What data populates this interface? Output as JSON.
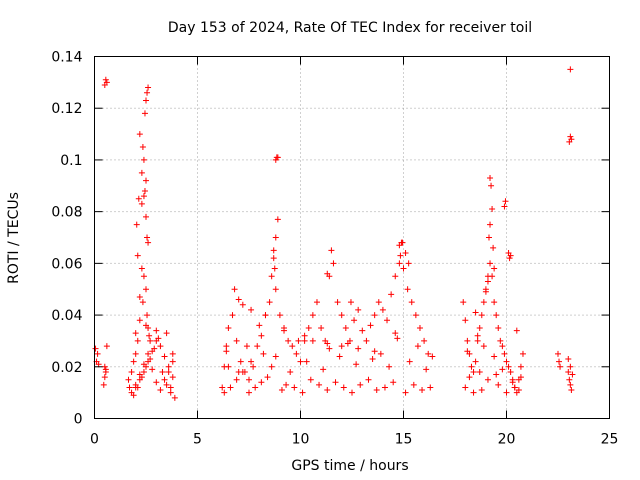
{
  "chart_data": {
    "type": "scatter",
    "title": "Day 153 of 2024, Rate Of TEC Index for receiver toil",
    "xlabel": "GPS time / hours",
    "ylabel": "ROTI / TECUs",
    "xlim": [
      0,
      25
    ],
    "ylim": [
      0,
      0.14
    ],
    "x_ticks": [
      0,
      5,
      10,
      15,
      20,
      25
    ],
    "x_tick_labels": [
      "0",
      "5",
      "10",
      "15",
      "20",
      "25"
    ],
    "y_ticks": [
      0,
      0.02,
      0.04,
      0.06,
      0.08,
      0.1,
      0.12,
      0.14
    ],
    "y_tick_labels": [
      "0",
      "0.02",
      "0.04",
      "0.06",
      "0.08",
      "0.1",
      "0.12",
      "0.14"
    ],
    "grid": true,
    "marker": "+",
    "marker_color": "#ff0000",
    "series": [
      {
        "name": "ROTI",
        "x": [
          0.05,
          0.1,
          0.15,
          0.2,
          0.45,
          0.5,
          0.55,
          0.5,
          0.55,
          0.6,
          0.5,
          0.55,
          0.6,
          1.65,
          1.7,
          1.8,
          1.9,
          2.0,
          2.1,
          2.2,
          2.05,
          2.15,
          2.3,
          2.4,
          2.45,
          2.5,
          2.55,
          2.6,
          2.2,
          2.35,
          2.45,
          2.5,
          2.55,
          2.6,
          2.1,
          2.3,
          2.4,
          2.5,
          2.2,
          2.35,
          2.55,
          2.6,
          2.65,
          2.7,
          2.3,
          2.4,
          2.5,
          2.0,
          2.2,
          2.4,
          2.6,
          2.8,
          3.0,
          3.2,
          3.4,
          3.6,
          3.8,
          1.8,
          2.0,
          2.2,
          2.4,
          2.6,
          2.8,
          3.0,
          3.2,
          3.4,
          3.6,
          3.8,
          1.9,
          2.1,
          2.3,
          2.5,
          2.7,
          2.9,
          3.1,
          3.3,
          3.5,
          3.7,
          3.9,
          2.0,
          2.5,
          3.0,
          3.5,
          3.7,
          3.8,
          6.2,
          6.3,
          6.4,
          6.5,
          6.7,
          6.9,
          7.1,
          7.3,
          7.5,
          7.7,
          7.9,
          8.1,
          8.3,
          8.5,
          8.6,
          8.7,
          8.8,
          8.9,
          8.8,
          8.85,
          8.9,
          8.7,
          8.75,
          8.8,
          9.0,
          9.2,
          9.4,
          9.6,
          9.8,
          10.0,
          10.2,
          10.4,
          10.6,
          10.8,
          11.0,
          11.2,
          11.4,
          11.5,
          11.6,
          11.8,
          12.0,
          12.2,
          12.4,
          12.6,
          12.8,
          13.0,
          13.2,
          13.4,
          13.6,
          13.8,
          14.0,
          14.2,
          14.4,
          14.6,
          14.8,
          14.9,
          14.85,
          15.0,
          15.2,
          15.4,
          15.6,
          15.8,
          16.0,
          16.2,
          6.3,
          6.6,
          6.9,
          7.2,
          7.5,
          7.8,
          8.1,
          8.4,
          9.1,
          9.3,
          9.7,
          10.1,
          10.5,
          10.9,
          11.3,
          11.7,
          12.1,
          12.5,
          12.9,
          13.3,
          13.7,
          14.1,
          14.5,
          15.1,
          15.5,
          15.9,
          16.3,
          6.5,
          7.0,
          7.6,
          8.2,
          8.6,
          9.5,
          10.3,
          11.1,
          11.9,
          12.7,
          13.5,
          14.3,
          15.3,
          16.1,
          6.4,
          7.4,
          8.8,
          9.9,
          11.4,
          12.3,
          13.9,
          14.7,
          15.7,
          16.4,
          14.8,
          14.95,
          15.1,
          15.25,
          11.3,
          12.45,
          8.0,
          6.8,
          7.0,
          7.2,
          7.6,
          8.3,
          9.2,
          10.2,
          10.6,
          11.3,
          12.0,
          12.8,
          13.6,
          14.6,
          17.9,
          18.0,
          18.1,
          18.2,
          18.3,
          18.4,
          18.5,
          18.6,
          18.7,
          18.8,
          18.9,
          19.0,
          19.1,
          19.2,
          19.3,
          19.4,
          19.5,
          19.6,
          19.7,
          19.8,
          19.9,
          20.0,
          20.1,
          20.2,
          20.3,
          20.4,
          20.5,
          20.6,
          20.7,
          20.8,
          19.2,
          19.25,
          19.3,
          19.15,
          19.35,
          19.4,
          19.0,
          19.1,
          18.5,
          19.9,
          19.95,
          20.1,
          20.15,
          20.2,
          18.6,
          19.2,
          18.0,
          18.4,
          18.8,
          19.6,
          20.0,
          20.4,
          20.6,
          18.2,
          18.7,
          19.1,
          19.5,
          19.8,
          20.3,
          20.7,
          18.1,
          18.9,
          19.4,
          20.5,
          22.5,
          22.55,
          22.6,
          23.0,
          23.05,
          23.1,
          23.15,
          23.0,
          23.1,
          23.2,
          23.05,
          23.1,
          23.15,
          23.1
        ],
        "y": [
          0.027,
          0.022,
          0.025,
          0.021,
          0.013,
          0.016,
          0.019,
          0.129,
          0.131,
          0.13,
          0.02,
          0.018,
          0.028,
          0.015,
          0.012,
          0.018,
          0.022,
          0.025,
          0.03,
          0.038,
          0.075,
          0.085,
          0.095,
          0.1,
          0.118,
          0.123,
          0.126,
          0.128,
          0.11,
          0.105,
          0.088,
          0.078,
          0.07,
          0.068,
          0.063,
          0.058,
          0.055,
          0.05,
          0.047,
          0.045,
          0.04,
          0.035,
          0.032,
          0.03,
          0.083,
          0.086,
          0.092,
          0.012,
          0.015,
          0.018,
          0.022,
          0.026,
          0.03,
          0.028,
          0.024,
          0.02,
          0.016,
          0.01,
          0.013,
          0.017,
          0.021,
          0.025,
          0.019,
          0.014,
          0.011,
          0.015,
          0.018,
          0.022,
          0.009,
          0.012,
          0.016,
          0.02,
          0.023,
          0.027,
          0.031,
          0.018,
          0.013,
          0.01,
          0.008,
          0.033,
          0.036,
          0.034,
          0.033,
          0.012,
          0.025,
          0.012,
          0.02,
          0.028,
          0.035,
          0.04,
          0.03,
          0.022,
          0.018,
          0.015,
          0.02,
          0.028,
          0.032,
          0.04,
          0.045,
          0.055,
          0.062,
          0.07,
          0.077,
          0.1,
          0.101,
          0.101,
          0.065,
          0.058,
          0.05,
          0.04,
          0.035,
          0.03,
          0.028,
          0.025,
          0.022,
          0.03,
          0.035,
          0.04,
          0.045,
          0.035,
          0.03,
          0.055,
          0.065,
          0.06,
          0.045,
          0.04,
          0.035,
          0.03,
          0.038,
          0.042,
          0.034,
          0.03,
          0.036,
          0.04,
          0.045,
          0.042,
          0.038,
          0.048,
          0.055,
          0.06,
          0.068,
          0.063,
          0.058,
          0.05,
          0.045,
          0.04,
          0.035,
          0.03,
          0.025,
          0.01,
          0.012,
          0.015,
          0.018,
          0.01,
          0.012,
          0.014,
          0.016,
          0.011,
          0.013,
          0.012,
          0.01,
          0.015,
          0.013,
          0.011,
          0.014,
          0.012,
          0.01,
          0.013,
          0.015,
          0.011,
          0.012,
          0.014,
          0.01,
          0.013,
          0.011,
          0.012,
          0.02,
          0.018,
          0.022,
          0.025,
          0.02,
          0.018,
          0.022,
          0.019,
          0.024,
          0.021,
          0.023,
          0.02,
          0.022,
          0.019,
          0.026,
          0.028,
          0.024,
          0.03,
          0.027,
          0.029,
          0.025,
          0.031,
          0.028,
          0.024,
          0.067,
          0.068,
          0.064,
          0.06,
          0.056,
          0.045,
          0.036,
          0.05,
          0.046,
          0.044,
          0.042,
          0.04,
          0.034,
          0.032,
          0.03,
          0.029,
          0.028,
          0.027,
          0.026,
          0.033,
          0.045,
          0.038,
          0.03,
          0.025,
          0.02,
          0.018,
          0.022,
          0.03,
          0.035,
          0.04,
          0.045,
          0.05,
          0.055,
          0.06,
          0.055,
          0.045,
          0.04,
          0.035,
          0.03,
          0.028,
          0.025,
          0.022,
          0.02,
          0.018,
          0.015,
          0.012,
          0.01,
          0.015,
          0.02,
          0.025,
          0.093,
          0.09,
          0.081,
          0.07,
          0.066,
          0.058,
          0.049,
          0.053,
          0.041,
          0.082,
          0.084,
          0.064,
          0.062,
          0.063,
          0.032,
          0.075,
          0.012,
          0.01,
          0.011,
          0.013,
          0.01,
          0.012,
          0.011,
          0.016,
          0.018,
          0.015,
          0.017,
          0.019,
          0.014,
          0.016,
          0.026,
          0.028,
          0.024,
          0.034,
          0.025,
          0.022,
          0.02,
          0.018,
          0.015,
          0.013,
          0.011,
          0.023,
          0.02,
          0.017,
          0.107,
          0.109,
          0.108,
          0.135
        ]
      }
    ]
  }
}
